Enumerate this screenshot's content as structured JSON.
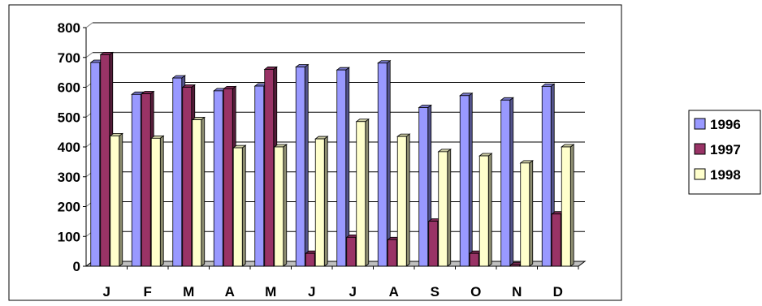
{
  "chart_data": {
    "type": "bar",
    "title": "",
    "xlabel": "",
    "ylabel": "",
    "categories": [
      "J",
      "F",
      "M",
      "A",
      "M",
      "J",
      "J",
      "A",
      "S",
      "O",
      "N",
      "D"
    ],
    "ylim": [
      0,
      800
    ],
    "yticks": [
      0,
      100,
      200,
      300,
      400,
      500,
      600,
      700,
      800
    ],
    "grid": true,
    "legend_position": "right",
    "series": [
      {
        "name": "1996",
        "color": "#9999ff",
        "values": [
          683,
          576,
          631,
          588,
          604,
          668,
          658,
          681,
          532,
          572,
          557,
          603
        ]
      },
      {
        "name": "1997",
        "color": "#993366",
        "values": [
          709,
          578,
          600,
          595,
          660,
          43,
          97,
          89,
          151,
          43,
          5,
          175
        ]
      },
      {
        "name": "1998",
        "color": "#ffffcc",
        "values": [
          437,
          429,
          491,
          397,
          400,
          427,
          485,
          435,
          384,
          370,
          346,
          400
        ]
      }
    ]
  }
}
